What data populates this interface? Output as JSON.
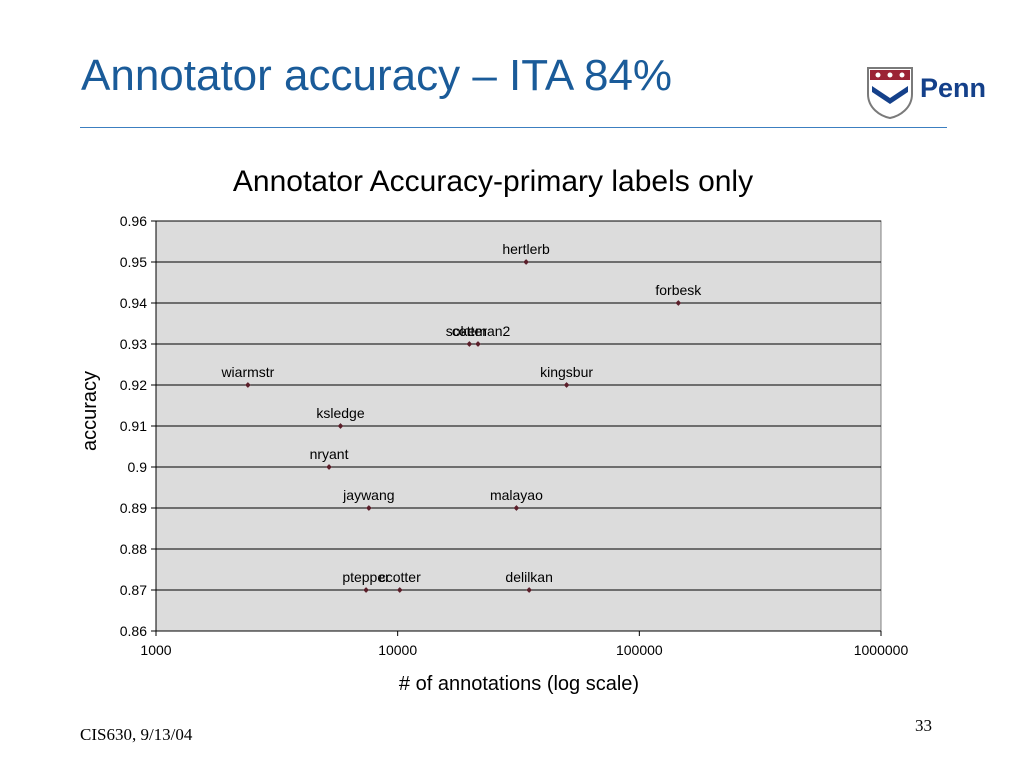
{
  "slide": {
    "title": "Annotator accuracy – ITA 84%",
    "logo_text": "Penn",
    "footer": "CIS630, 9/13/04",
    "page_number": "33"
  },
  "chart_data": {
    "type": "scatter",
    "title": "Annotator Accuracy-primary labels only",
    "xlabel": "# of annotations (log scale)",
    "ylabel": "accuracy",
    "x_scale": "log",
    "xlim": [
      1000,
      1000000
    ],
    "ylim": [
      0.86,
      0.96
    ],
    "x_ticks": [
      "1000",
      "10000",
      "100000",
      "1000000"
    ],
    "y_ticks": [
      "0.86",
      "0.87",
      "0.88",
      "0.89",
      "0.9",
      "0.91",
      "0.92",
      "0.93",
      "0.94",
      "0.95",
      "0.96"
    ],
    "grid": true,
    "plot_background": "#dcdcdc",
    "marker_color": "#5a1f2a",
    "points": [
      {
        "label": "hertlerb",
        "x": 34000,
        "y": 0.95
      },
      {
        "label": "forbesk",
        "x": 145000,
        "y": 0.94
      },
      {
        "label": "sokeman2",
        "x": 21500,
        "y": 0.93
      },
      {
        "label": "cotter",
        "x": 19800,
        "y": 0.93
      },
      {
        "label": "wiarmstr",
        "x": 2400,
        "y": 0.92
      },
      {
        "label": "kingsbur",
        "x": 50000,
        "y": 0.92
      },
      {
        "label": "ksledge",
        "x": 5800,
        "y": 0.91
      },
      {
        "label": "nryant",
        "x": 5200,
        "y": 0.9
      },
      {
        "label": "jaywang",
        "x": 7600,
        "y": 0.89
      },
      {
        "label": "malayao",
        "x": 31000,
        "y": 0.89
      },
      {
        "label": "ptepper",
        "x": 7400,
        "y": 0.87
      },
      {
        "label": "ccotter",
        "x": 10200,
        "y": 0.87
      },
      {
        "label": "delilkan",
        "x": 35000,
        "y": 0.87
      }
    ]
  }
}
